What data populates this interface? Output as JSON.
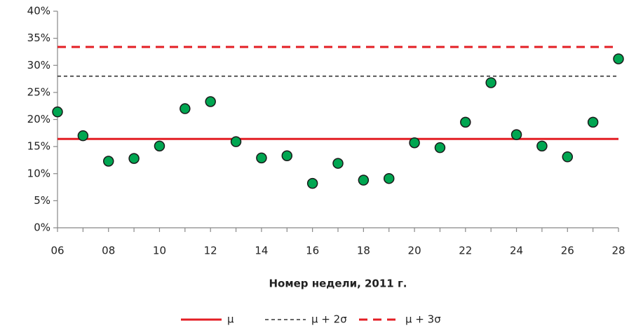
{
  "chart_data": {
    "type": "scatter",
    "xlabel": "Номер недели, 2011 г.",
    "categories": [
      "06",
      null,
      "08",
      null,
      "10",
      null,
      "12",
      null,
      "14",
      null,
      "16",
      null,
      "18",
      null,
      "20",
      null,
      "22",
      null,
      "24",
      null,
      "26",
      null,
      "28"
    ],
    "values": [
      21.4,
      17.0,
      12.3,
      12.8,
      15.1,
      22.0,
      23.3,
      15.9,
      12.9,
      13.3,
      8.2,
      11.9,
      8.8,
      9.1,
      15.7,
      14.8,
      19.5,
      26.8,
      17.2,
      15.1,
      13.1,
      19.5,
      31.2
    ],
    "color": "#00a651",
    "ylim": [
      0,
      40
    ],
    "yticks": [
      {
        "value": 0,
        "label": "0%"
      },
      {
        "value": 5,
        "label": "5%"
      },
      {
        "value": 10,
        "label": "10%"
      },
      {
        "value": 15,
        "label": "15%"
      },
      {
        "value": 20,
        "label": "20%"
      },
      {
        "value": 25,
        "label": "25%"
      },
      {
        "value": 30,
        "label": "30%"
      },
      {
        "value": 35,
        "label": "35%"
      },
      {
        "value": 40,
        "label": "40%"
      }
    ],
    "reference_lines": [
      {
        "name": "μ",
        "value": 16.4,
        "color": "#e31e24",
        "style": "solid"
      },
      {
        "name": "μ + 2σ",
        "value": 28.0,
        "color": "#333333",
        "style": "dashed"
      },
      {
        "name": "μ + 3σ",
        "value": 33.4,
        "color": "#e31e24",
        "style": "dashed-bold"
      }
    ],
    "legend": "bottom"
  }
}
